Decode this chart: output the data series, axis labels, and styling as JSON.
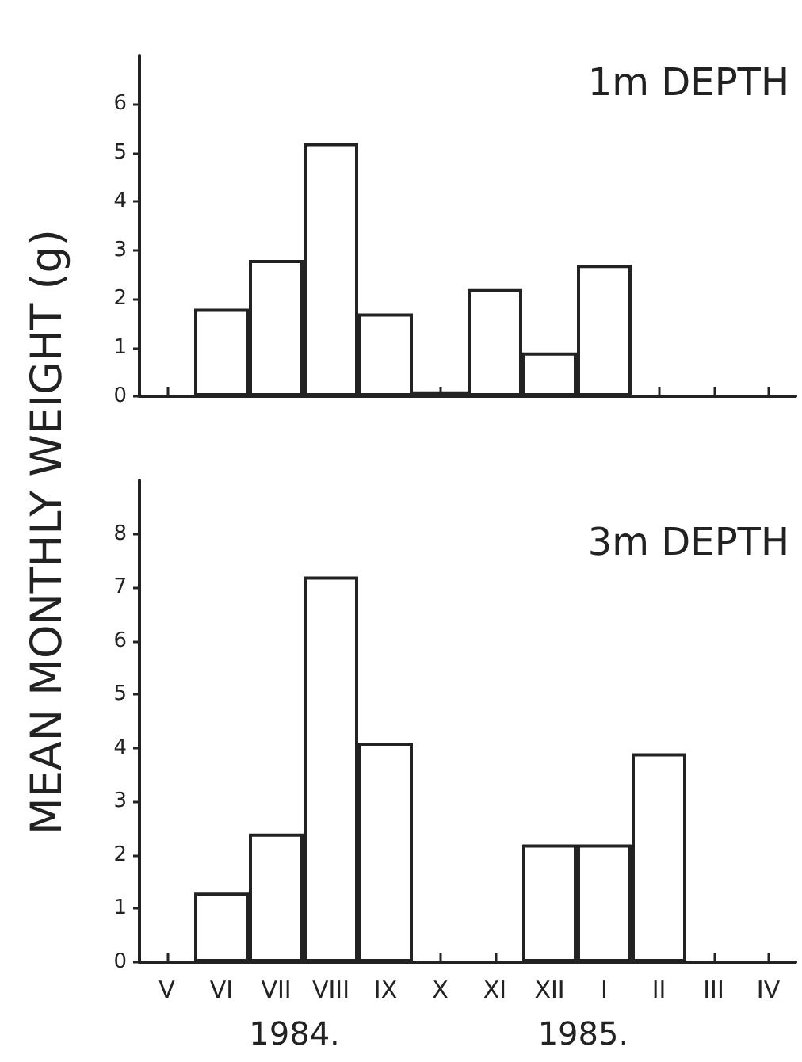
{
  "chart_data": [
    {
      "type": "bar",
      "title": "1m DEPTH",
      "ylabel": "MEAN MONTHLY WEIGHT (g)",
      "color": "#ffffff",
      "categories": [
        null,
        null,
        null,
        null,
        null,
        null,
        null,
        null,
        null,
        null,
        null,
        null
      ],
      "values": [
        null,
        1.8,
        2.8,
        5.2,
        1.7,
        0.1,
        2.2,
        0.9,
        2.7,
        null,
        null,
        null
      ],
      "ylim": [
        0,
        7
      ],
      "yticks": [
        0,
        1,
        2,
        3,
        4,
        5,
        6
      ],
      "tick_labels": "y"
    },
    {
      "type": "bar",
      "title": "3m DEPTH",
      "color": "#ffffff",
      "categories": [
        "V",
        "VI",
        "VII",
        "VIII",
        "IX",
        "X",
        "XI",
        "XII",
        "I",
        "II",
        "III",
        "IV"
      ],
      "values": [
        null,
        1.3,
        2.4,
        7.2,
        4.1,
        null,
        null,
        2.2,
        2.2,
        3.9,
        null,
        null
      ],
      "ylim": [
        0,
        9
      ],
      "yticks": [
        0,
        1,
        2,
        3,
        4,
        5,
        6,
        7,
        8
      ],
      "annotations": [
        "1984.",
        "1985."
      ]
    }
  ]
}
